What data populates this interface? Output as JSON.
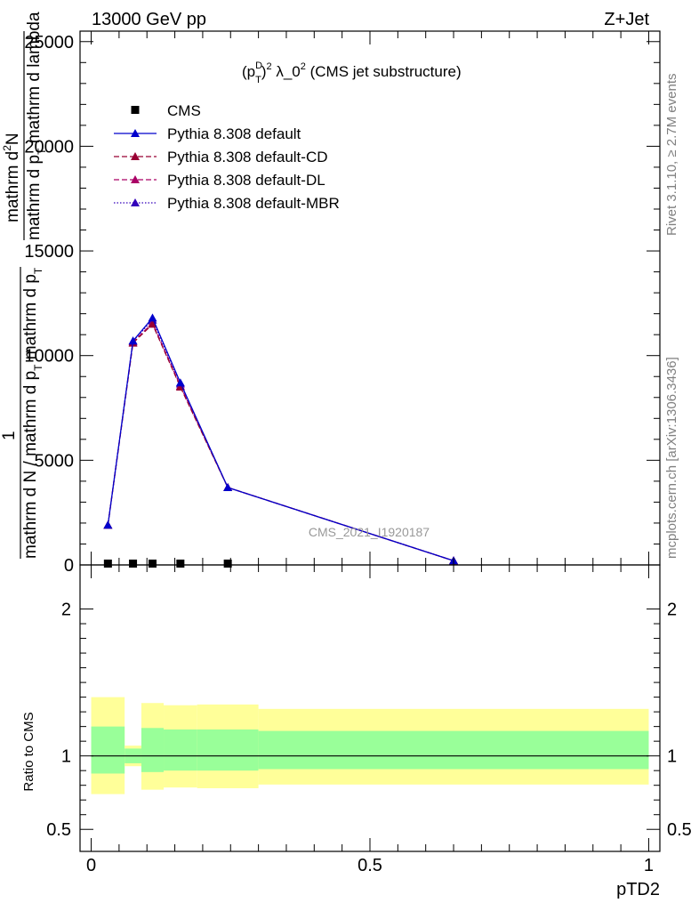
{
  "header": {
    "left": "13000 GeV pp",
    "right": "Z+Jet"
  },
  "plot_title": {
    "pre": "(p",
    "sup": "D",
    "sub": "T",
    "post_sup": "2",
    "mid": " λ_0",
    "mid_sup": "2",
    "tail": " (CMS jet substructure)"
  },
  "side_text": {
    "rivet": "Rivet 3.1.10, ≥ 2.7M events",
    "mcplots": "mcplots.cern.ch [arXiv:1306.3436]"
  },
  "watermark": "CMS_2021_I1920187",
  "ylabel_top": {
    "numerator_a": "mathrm d",
    "numerator_sup": "2",
    "numerator_b": "N",
    "denominator": "mathrm d p",
    "denominator_sub": "T",
    "denominator_tail": " mathrm d lambda",
    "one": "1",
    "lower_denominator_a": "mathrm d N / mathrm d p",
    "lower_denominator_sub": "T",
    "lower_denominator_b": " mathrm d p",
    "lower_denominator_sub2": "T"
  },
  "ylabel_ratio": "Ratio to CMS",
  "xlabel": "pTD2",
  "colors": {
    "cms": "#000000",
    "default": "#0000cc",
    "cd": "#990033",
    "dl": "#aa0066",
    "mbr": "#3300bb",
    "band_outer": "#ffff99",
    "band_inner": "#99ff99"
  },
  "chart_data": [
    {
      "type": "line",
      "xlim": [
        -0.02,
        1.02
      ],
      "ylim": [
        0,
        25500
      ],
      "y_ticks": [
        0,
        5000,
        10000,
        15000,
        20000,
        25000
      ],
      "y_tick_labels": [
        "0",
        "5000",
        "10000",
        "15000",
        "20000",
        "25000"
      ],
      "legend_placement": "top-left",
      "series": [
        {
          "name": "CMS",
          "marker": "square",
          "x": [
            0.03,
            0.075,
            0.11,
            0.16,
            0.245
          ],
          "y": [
            0,
            0,
            0,
            0,
            0
          ]
        },
        {
          "name": "Pythia 8.308 default",
          "style": "solid",
          "x": [
            0.03,
            0.075,
            0.11,
            0.16,
            0.245,
            0.65
          ],
          "y": [
            1900,
            10700,
            11800,
            8700,
            3700,
            200
          ]
        },
        {
          "name": "Pythia 8.308 default-CD",
          "style": "dashed",
          "x": [
            0.03,
            0.075,
            0.11,
            0.16,
            0.245,
            0.65
          ],
          "y": [
            1900,
            10600,
            11500,
            8500,
            3700,
            200
          ]
        },
        {
          "name": "Pythia 8.308 default-DL",
          "style": "dashed",
          "x": [
            0.03,
            0.075,
            0.11,
            0.16,
            0.245,
            0.65
          ],
          "y": [
            1900,
            10650,
            11550,
            8550,
            3700,
            200
          ]
        },
        {
          "name": "Pythia 8.308 default-MBR",
          "style": "dotted",
          "x": [
            0.03,
            0.075,
            0.11,
            0.16,
            0.245,
            0.65
          ],
          "y": [
            1900,
            10700,
            11700,
            8650,
            3700,
            200
          ]
        }
      ]
    },
    {
      "type": "area",
      "xlim": [
        -0.02,
        1.02
      ],
      "ylim": [
        0.35,
        2.3
      ],
      "x_ticks": [
        0,
        0.5,
        1
      ],
      "x_tick_labels": [
        "0",
        "0.5",
        "1"
      ],
      "y_ticks": [
        0.5,
        1,
        2
      ],
      "y_tick_labels": [
        "0.5",
        "1",
        "2"
      ],
      "bins": [
        {
          "x0": 0.0,
          "x1": 0.06,
          "outer": [
            0.74,
            1.4
          ],
          "inner": [
            0.88,
            1.2
          ]
        },
        {
          "x0": 0.06,
          "x1": 0.09,
          "outer": [
            0.93,
            1.07
          ],
          "inner": [
            0.95,
            1.05
          ]
        },
        {
          "x0": 0.09,
          "x1": 0.13,
          "outer": [
            0.77,
            1.36
          ],
          "inner": [
            0.89,
            1.19
          ]
        },
        {
          "x0": 0.13,
          "x1": 0.19,
          "outer": [
            0.785,
            1.345
          ],
          "inner": [
            0.9,
            1.18
          ]
        },
        {
          "x0": 0.19,
          "x1": 0.3,
          "outer": [
            0.78,
            1.35
          ],
          "inner": [
            0.9,
            1.18
          ]
        },
        {
          "x0": 0.3,
          "x1": 1.0,
          "outer": [
            0.805,
            1.32
          ],
          "inner": [
            0.91,
            1.17
          ]
        }
      ],
      "reference_line": 1
    }
  ]
}
